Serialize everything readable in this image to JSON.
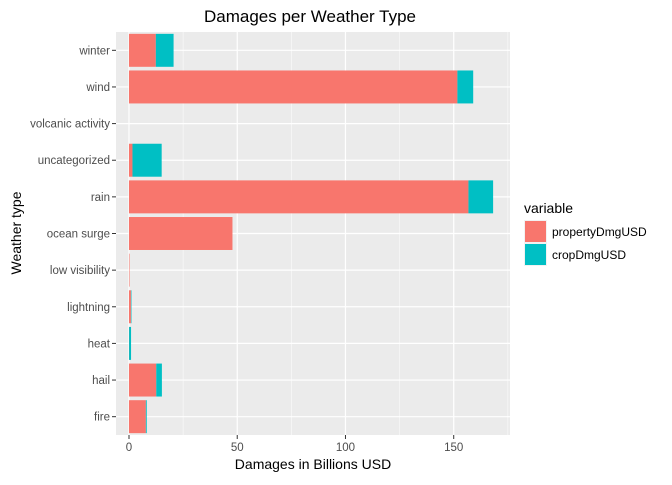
{
  "chart_data": {
    "type": "bar",
    "orientation": "horizontal",
    "stacked": true,
    "title": "Damages per Weather Type",
    "xlabel": "Damages in Billions USD",
    "ylabel": "Weather type",
    "xlim": [
      -6,
      176
    ],
    "xticks": [
      0,
      50,
      100,
      150
    ],
    "xtick_labels": [
      "0",
      "50",
      "100",
      "150"
    ],
    "categories": [
      "fire",
      "hail",
      "heat",
      "lightning",
      "low visibility",
      "ocean surge",
      "rain",
      "uncategorized",
      "volcanic activity",
      "wind",
      "winter"
    ],
    "series": [
      {
        "name": "propertyDmgUSD",
        "color": "#F8766D",
        "values": [
          7.8,
          12.6,
          0.05,
          0.9,
          0.02,
          47.8,
          156.8,
          1.6,
          0.0,
          151.7,
          12.4
        ]
      },
      {
        "name": "cropDmgUSD",
        "color": "#00BFC4",
        "values": [
          0.4,
          2.6,
          0.9,
          0.01,
          0.0,
          0.0,
          11.4,
          13.5,
          0.0,
          7.3,
          8.2
        ]
      }
    ],
    "legend": {
      "title": "variable",
      "position": "right"
    },
    "grid": true,
    "panel_background": "#EBEBEB",
    "grid_color": "#FFFFFF"
  }
}
